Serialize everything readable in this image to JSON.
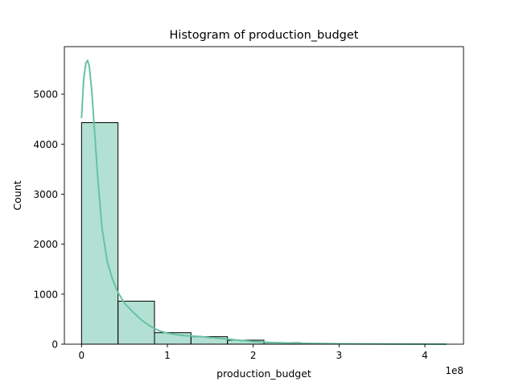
{
  "chart_data": {
    "type": "bar",
    "title": "Histogram of production_budget",
    "xlabel": "production_budget",
    "ylabel": "Count",
    "x_offset_label": "1e8",
    "x_scale_factor": 100000000,
    "xlim": [
      -20000000,
      445000000
    ],
    "ylim": [
      0,
      5950
    ],
    "x_ticks": [
      0,
      100000000,
      200000000,
      300000000,
      400000000
    ],
    "x_tick_labels": [
      "0",
      "1",
      "2",
      "3",
      "4"
    ],
    "y_ticks": [
      0,
      1000,
      2000,
      3000,
      4000,
      5000
    ],
    "y_tick_labels": [
      "0",
      "1000",
      "2000",
      "3000",
      "4000",
      "5000"
    ],
    "bins": [
      {
        "start": 0,
        "end": 42500000,
        "count": 4430
      },
      {
        "start": 42500000,
        "end": 85000000,
        "count": 860
      },
      {
        "start": 85000000,
        "end": 127500000,
        "count": 230
      },
      {
        "start": 127500000,
        "end": 170000000,
        "count": 150
      },
      {
        "start": 170000000,
        "end": 212500000,
        "count": 80
      },
      {
        "start": 212500000,
        "end": 255000000,
        "count": 30
      },
      {
        "start": 255000000,
        "end": 297500000,
        "count": 12
      },
      {
        "start": 297500000,
        "end": 340000000,
        "count": 6
      },
      {
        "start": 340000000,
        "end": 382500000,
        "count": 3
      },
      {
        "start": 382500000,
        "end": 425000000,
        "count": 2
      }
    ],
    "kde": [
      [
        0,
        4520
      ],
      [
        2500000,
        5300
      ],
      [
        5000000,
        5620
      ],
      [
        7000000,
        5670
      ],
      [
        9000000,
        5560
      ],
      [
        12000000,
        5050
      ],
      [
        15000000,
        4300
      ],
      [
        19000000,
        3300
      ],
      [
        24000000,
        2300
      ],
      [
        30000000,
        1650
      ],
      [
        36000000,
        1300
      ],
      [
        42000000,
        1050
      ],
      [
        50000000,
        820
      ],
      [
        60000000,
        640
      ],
      [
        70000000,
        480
      ],
      [
        80000000,
        360
      ],
      [
        90000000,
        270
      ],
      [
        100000000,
        220
      ],
      [
        110000000,
        190
      ],
      [
        120000000,
        170
      ],
      [
        130000000,
        160
      ],
      [
        140000000,
        150
      ],
      [
        150000000,
        130
      ],
      [
        165000000,
        110
      ],
      [
        180000000,
        85
      ],
      [
        200000000,
        55
      ],
      [
        220000000,
        35
      ],
      [
        250000000,
        20
      ],
      [
        300000000,
        8
      ],
      [
        350000000,
        4
      ],
      [
        400000000,
        2
      ],
      [
        425000000,
        1
      ]
    ],
    "colors": {
      "bar_fill": "#66c2a5",
      "bar_fill_opacity": 0.5,
      "bar_edge": "#000000",
      "kde_line": "#66c2a5"
    }
  }
}
